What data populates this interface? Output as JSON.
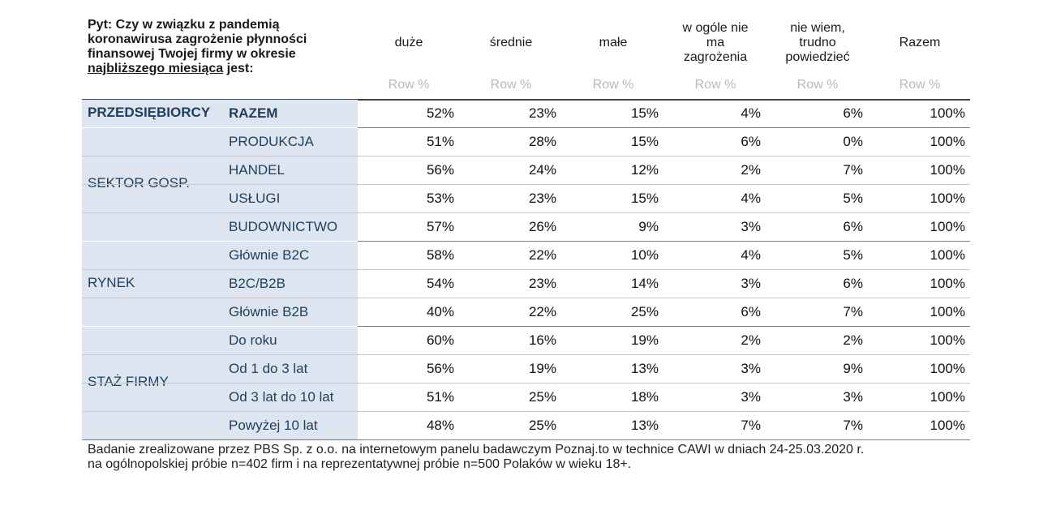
{
  "question": {
    "line1": "Pyt: Czy w związku z pandemią",
    "line2": "koronawirusa zagrożenie płynności",
    "line3": "finansowej Twojej firmy w okresie",
    "line4_underlined": "najbliższego miesiąca",
    "line4_rest": " jest:"
  },
  "columns": [
    {
      "lines": [
        "duże"
      ],
      "sub": "Row %"
    },
    {
      "lines": [
        "średnie"
      ],
      "sub": "Row %"
    },
    {
      "lines": [
        "małe"
      ],
      "sub": "Row %"
    },
    {
      "lines": [
        "w ogóle nie",
        "ma",
        "zagrożenia"
      ],
      "sub": "Row %"
    },
    {
      "lines": [
        "nie wiem,",
        "trudno",
        "powiedzieć"
      ],
      "sub": "Row %"
    },
    {
      "lines": [
        "Razem"
      ],
      "sub": "Row %"
    }
  ],
  "groups": [
    {
      "label": "PRZEDSIĘBIORCY",
      "rows": [
        {
          "label": "RAZEM",
          "values": [
            "52%",
            "23%",
            "15%",
            "4%",
            "6%",
            "100%"
          ]
        }
      ]
    },
    {
      "label": "SEKTOR GOSP.",
      "rows": [
        {
          "label": "PRODUKCJA",
          "values": [
            "51%",
            "28%",
            "15%",
            "6%",
            "0%",
            "100%"
          ]
        },
        {
          "label": "HANDEL",
          "values": [
            "56%",
            "24%",
            "12%",
            "2%",
            "7%",
            "100%"
          ]
        },
        {
          "label": "USŁUGI",
          "values": [
            "53%",
            "23%",
            "15%",
            "4%",
            "5%",
            "100%"
          ]
        },
        {
          "label": "BUDOWNICTWO",
          "values": [
            "57%",
            "26%",
            "9%",
            "3%",
            "6%",
            "100%"
          ]
        }
      ]
    },
    {
      "label": "RYNEK",
      "rows": [
        {
          "label": "Głównie B2C",
          "values": [
            "58%",
            "22%",
            "10%",
            "4%",
            "5%",
            "100%"
          ]
        },
        {
          "label": "B2C/B2B",
          "values": [
            "54%",
            "23%",
            "14%",
            "3%",
            "6%",
            "100%"
          ]
        },
        {
          "label": "Głównie B2B",
          "values": [
            "40%",
            "22%",
            "25%",
            "6%",
            "7%",
            "100%"
          ]
        }
      ]
    },
    {
      "label": "STAŻ FIRMY",
      "rows": [
        {
          "label": "Do roku",
          "values": [
            "60%",
            "16%",
            "19%",
            "2%",
            "2%",
            "100%"
          ]
        },
        {
          "label": "Od 1 do 3 lat",
          "values": [
            "56%",
            "19%",
            "13%",
            "3%",
            "9%",
            "100%"
          ]
        },
        {
          "label": "Od 3 lat do 10 lat",
          "values": [
            "51%",
            "25%",
            "18%",
            "3%",
            "3%",
            "100%"
          ]
        },
        {
          "label": "Powyżej 10 lat",
          "values": [
            "48%",
            "25%",
            "13%",
            "7%",
            "7%",
            "100%"
          ]
        }
      ]
    }
  ],
  "footer": {
    "line1": "Badanie zrealizowane przez PBS Sp. z o.o. na internetowym panelu badawczym Poznaj.to w technice CAWI w dniach 24-25.03.2020 r.",
    "line2": "na ogólnopolskiej próbie n=402 firm i na reprezentatywnej próbie n=500 Polaków w wieku 18+."
  },
  "colors": {
    "band": "#dde6f0",
    "label_text": "#1f3e5d",
    "subheader_text": "#b9b9b9"
  }
}
